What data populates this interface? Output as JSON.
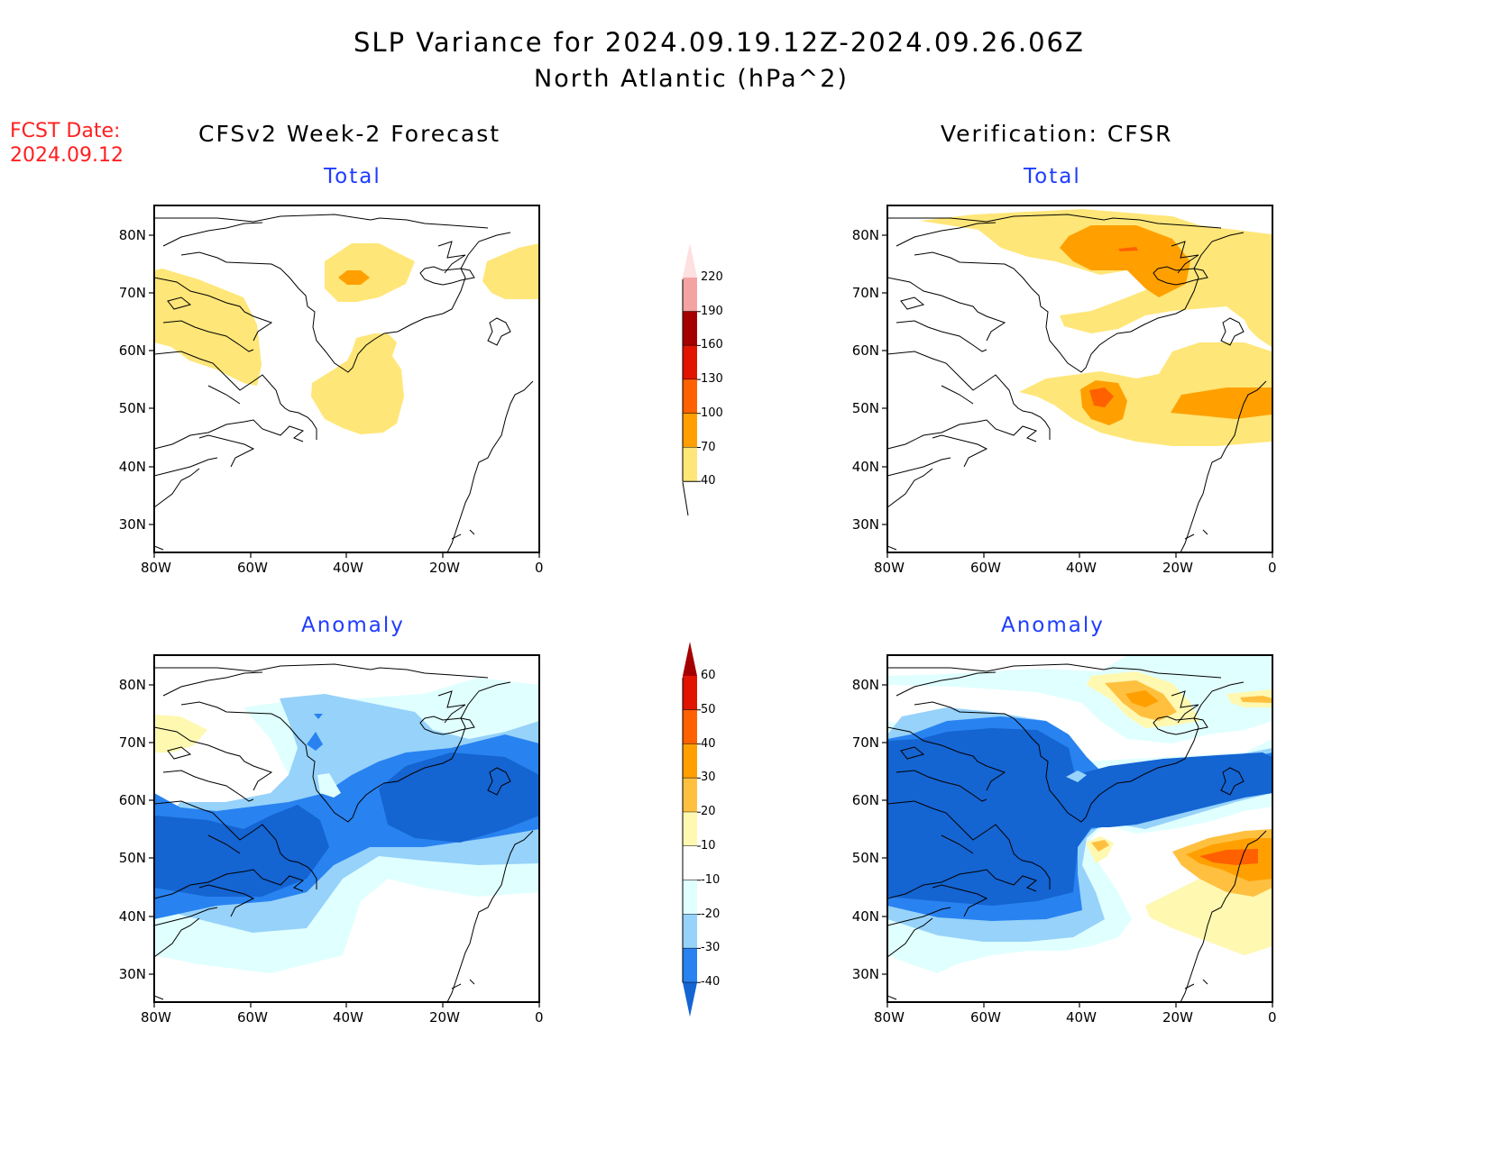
{
  "header": {
    "title": "SLP Variance for 2024.09.19.12Z-2024.09.26.06Z",
    "subtitle": "North Atlantic (hPa^2)",
    "fcst_label": "FCST Date:",
    "fcst_date": "2024.09.12"
  },
  "columns": {
    "left": "CFSv2 Week-2 Forecast",
    "right": "Verification: CFSR"
  },
  "panels": {
    "top_left": "Total",
    "top_right": "Total",
    "bottom_left": "Anomaly",
    "bottom_right": "Anomaly"
  },
  "axes": {
    "lat_labels": [
      "80N",
      "70N",
      "60N",
      "50N",
      "40N",
      "30N"
    ],
    "lon_labels": [
      "80W",
      "60W",
      "40W",
      "20W",
      "0"
    ]
  },
  "colorbars": {
    "total": {
      "labels": [
        "220",
        "190",
        "160",
        "130",
        "100",
        "70",
        "40"
      ],
      "colors": [
        "#fde0e0",
        "#f4a3a3",
        "#a50000",
        "#e01400",
        "#ff6000",
        "#ffa000",
        "#ffe678"
      ]
    },
    "anomaly": {
      "labels": [
        "60",
        "50",
        "40",
        "30",
        "20",
        "10",
        "-10",
        "-20",
        "-30",
        "-40"
      ],
      "colors": [
        "#a50000",
        "#e01400",
        "#ff6000",
        "#ffa000",
        "#ffc040",
        "#fff8b0",
        "#ffffff",
        "#e0ffff",
        "#96d2fa",
        "#2882f0",
        "#1464d2"
      ]
    }
  },
  "chart_data": {
    "type": "heatmap",
    "title": "SLP Variance for 2024.09.19.12Z-2024.09.26.06Z",
    "subtitle": "North Atlantic (hPa^2)",
    "xlim": [
      -80,
      0
    ],
    "ylim": [
      25,
      85
    ],
    "total_levels": [
      40,
      70,
      100,
      130,
      160,
      190,
      220
    ],
    "anomaly_levels": [
      -40,
      -30,
      -20,
      -10,
      10,
      20,
      30,
      40,
      50,
      60
    ]
  }
}
